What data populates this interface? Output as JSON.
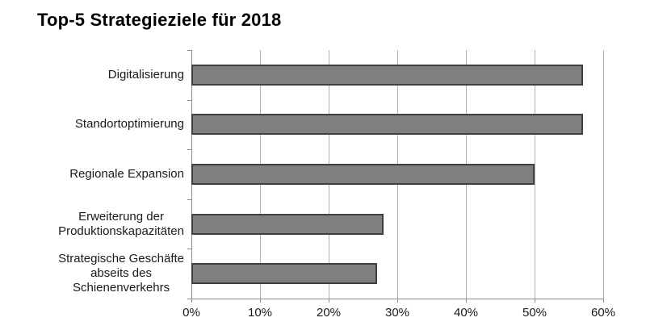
{
  "page": {
    "background": "#ffffff"
  },
  "chart_data": {
    "type": "bar",
    "orientation": "horizontal",
    "title": "Top-5 Strategieziele für 2018",
    "categories": [
      "Digitalisierung",
      "Standortoptimierung",
      "Regionale Expansion",
      "Erweiterung der\nProduktionskapazitäten",
      "Strategische Geschäfte\nabseits des\nSchienenverkehrs"
    ],
    "values": [
      57,
      57,
      50,
      28,
      27
    ],
    "value_unit": "%",
    "xlabel": "",
    "ylabel": "",
    "xlim": [
      0,
      60
    ],
    "x_ticks": [
      0,
      10,
      20,
      30,
      40,
      50,
      60
    ],
    "x_tick_labels": [
      "0%",
      "10%",
      "20%",
      "30%",
      "40%",
      "50%",
      "60%"
    ],
    "grid": true,
    "legend": false,
    "data_labels": false,
    "colors": {
      "bar_fill": "#7f7f7f",
      "bar_border": "#3f3f3f",
      "gridline": "#b3b3b3",
      "axis": "#8c8c8c",
      "text": "#1a1a1a",
      "title": "#000000"
    }
  }
}
